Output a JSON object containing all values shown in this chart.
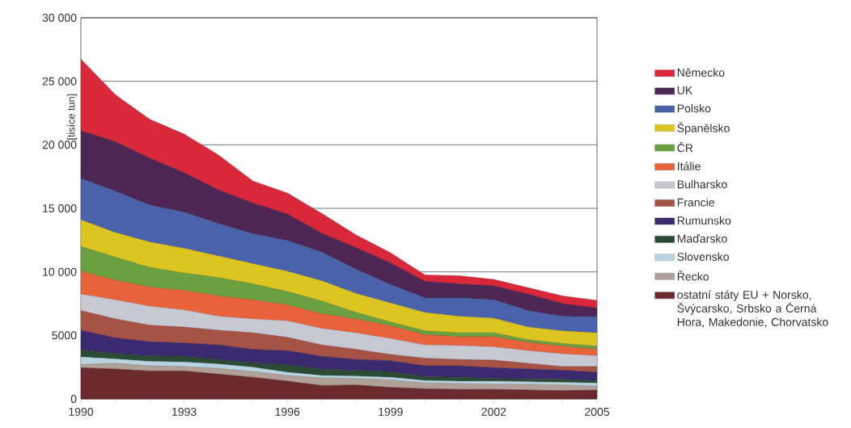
{
  "chart_data": {
    "type": "area",
    "stacked": true,
    "ylabel": "[tisíce tun]",
    "x": [
      1990,
      1991,
      1992,
      1993,
      1994,
      1995,
      1996,
      1997,
      1998,
      1999,
      2000,
      2001,
      2002,
      2003,
      2004,
      2005
    ],
    "xlim": [
      1990,
      2005
    ],
    "xticks": [
      1990,
      1993,
      1996,
      1999,
      2002,
      2005
    ],
    "ylim": [
      0,
      30000
    ],
    "yticks": [
      0,
      5000,
      {
        "value": 10000,
        "label": "10 000"
      },
      {
        "value": 15000,
        "label": "15 000"
      },
      {
        "value": 20000,
        "label": "20 000"
      },
      {
        "value": 25000,
        "label": "25 000"
      },
      {
        "value": 30000,
        "label": "30 000"
      }
    ],
    "grid": "y",
    "legend": "right",
    "series": [
      {
        "name": "ostatní státy EU + Norsko, Švýcarsko, Srbsko a Černá Hora, Makedonie, Chorvatsko",
        "color": "#6a2a2e",
        "values": [
          2450,
          2350,
          2200,
          2200,
          1950,
          1700,
          1400,
          1050,
          1100,
          900,
          800,
          750,
          750,
          700,
          650,
          700
        ]
      },
      {
        "name": "Řecko",
        "color": "#b0a098",
        "values": [
          250,
          450,
          400,
          350,
          450,
          450,
          450,
          600,
          500,
          600,
          450,
          450,
          400,
          450,
          450,
          300
        ]
      },
      {
        "name": "Slovensko",
        "color": "#b8d4e0",
        "values": [
          600,
          350,
          350,
          350,
          350,
          350,
          250,
          200,
          200,
          200,
          200,
          200,
          250,
          200,
          200,
          250
        ]
      },
      {
        "name": "Maďarsko",
        "color": "#2a4a35",
        "values": [
          600,
          400,
          450,
          450,
          350,
          350,
          600,
          500,
          450,
          450,
          300,
          300,
          200,
          200,
          250,
          200
        ]
      },
      {
        "name": "Rumunsko",
        "color": "#3c2a70",
        "values": [
          1500,
          1250,
          1100,
          1050,
          1150,
          1050,
          1100,
          1000,
          850,
          850,
          850,
          900,
          850,
          800,
          700,
          650
        ]
      },
      {
        "name": "Francie",
        "color": "#a65244",
        "values": [
          1550,
          1500,
          1300,
          1250,
          1150,
          1300,
          1050,
          900,
          800,
          500,
          600,
          500,
          600,
          450,
          300,
          450
        ]
      },
      {
        "name": "Bulharsko",
        "color": "#c8c8d2",
        "values": [
          1300,
          1500,
          1500,
          1350,
          1100,
          1100,
          1300,
          1300,
          1300,
          1250,
          1050,
          1100,
          1050,
          1000,
          1000,
          850
        ]
      },
      {
        "name": "Itálie",
        "color": "#e8623a",
        "values": [
          1800,
          1550,
          1500,
          1550,
          1600,
          1500,
          1250,
          1150,
          1100,
          1000,
          800,
          700,
          800,
          650,
          600,
          500
        ]
      },
      {
        "name": "ČR",
        "color": "#6aa040",
        "values": [
          1950,
          1800,
          1550,
          1350,
          1450,
          1250,
          1050,
          1000,
          500,
          300,
          300,
          300,
          300,
          200,
          200,
          250
        ]
      },
      {
        "name": "Španělsko",
        "color": "#dcc421",
        "values": [
          2100,
          1950,
          2000,
          1950,
          1700,
          1600,
          1600,
          1600,
          1500,
          1500,
          1450,
          1300,
          1150,
          1000,
          1000,
          1050
        ]
      },
      {
        "name": "Polsko",
        "color": "#4a62aa",
        "values": [
          3250,
          3250,
          2900,
          2850,
          2550,
          2350,
          2400,
          2250,
          1900,
          1450,
          1150,
          1450,
          1450,
          1300,
          1150,
          1250
        ]
      },
      {
        "name": "UK",
        "color": "#4e2656",
        "values": [
          3750,
          3900,
          3700,
          3100,
          2650,
          2400,
          2100,
          1500,
          1700,
          1700,
          1300,
          1100,
          1100,
          1300,
          1000,
          700
        ]
      },
      {
        "name": "Německo",
        "color": "#d9283a",
        "values": [
          5650,
          3700,
          3050,
          3050,
          2750,
          1750,
          1650,
          1550,
          1000,
          800,
          500,
          650,
          500,
          500,
          600,
          600
        ]
      }
    ]
  }
}
